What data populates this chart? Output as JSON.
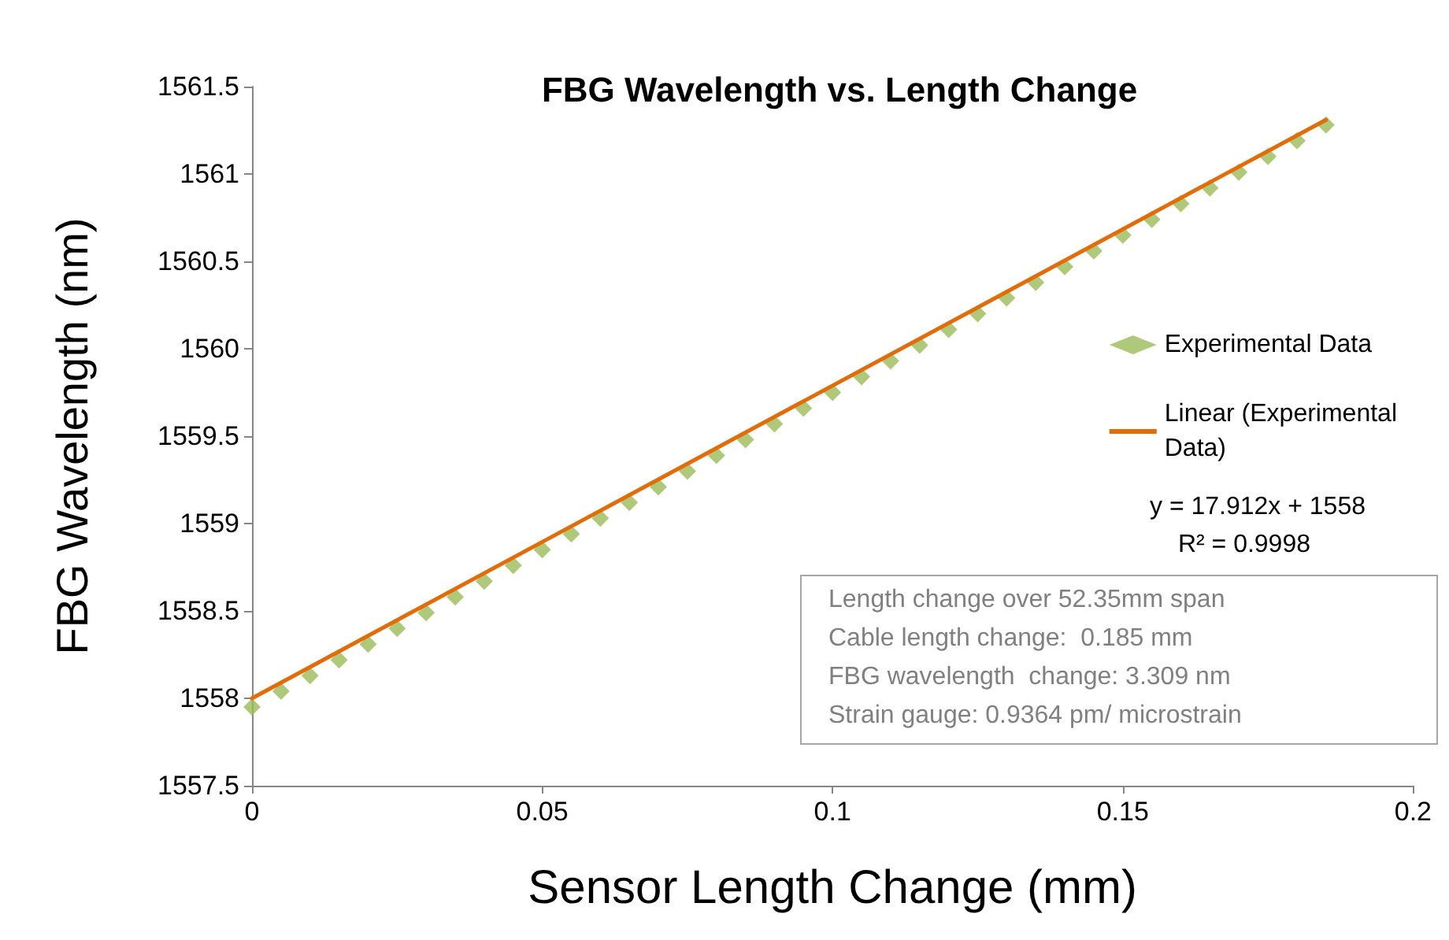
{
  "chart_data": {
    "type": "scatter",
    "title": "FBG Wavelength vs. Length Change",
    "xlabel": "Sensor Length Change (mm)",
    "ylabel": "FBG Wavelength (nm)",
    "xlim": [
      0,
      0.2
    ],
    "xticks": [
      0,
      0.05,
      0.1,
      0.15,
      0.2
    ],
    "ylim": [
      1557.5,
      1561.5
    ],
    "yticks": [
      1557.5,
      1558,
      1558.5,
      1559,
      1559.5,
      1560,
      1560.5,
      1561,
      1561.5
    ],
    "grid": false,
    "legend": "right",
    "series": [
      {
        "name": "Experimental Data",
        "marker": "diamond",
        "color": "#9bbb59",
        "x": [
          0,
          0.005,
          0.01,
          0.015,
          0.02,
          0.025,
          0.03,
          0.035,
          0.04,
          0.045,
          0.05,
          0.055,
          0.06,
          0.065,
          0.07,
          0.075,
          0.08,
          0.085,
          0.09,
          0.095,
          0.1,
          0.105,
          0.11,
          0.115,
          0.12,
          0.125,
          0.13,
          0.135,
          0.14,
          0.145,
          0.15,
          0.155,
          0.16,
          0.165,
          0.17,
          0.175,
          0.18,
          0.185
        ],
        "values": [
          1557.95,
          1558.04,
          1558.13,
          1558.22,
          1558.31,
          1558.4,
          1558.49,
          1558.58,
          1558.67,
          1558.76,
          1558.85,
          1558.94,
          1559.03,
          1559.12,
          1559.21,
          1559.3,
          1559.39,
          1559.48,
          1559.57,
          1559.66,
          1559.75,
          1559.84,
          1559.93,
          1560.02,
          1560.11,
          1560.2,
          1560.29,
          1560.38,
          1560.47,
          1560.56,
          1560.65,
          1560.74,
          1560.83,
          1560.92,
          1561.01,
          1561.1,
          1561.19,
          1561.28
        ]
      },
      {
        "name": "Linear (Experimental Data)",
        "type": "line",
        "color": "#e36c09",
        "line_style": "solid",
        "x": [
          0,
          0.185
        ],
        "values": [
          1558,
          1561.31
        ]
      }
    ],
    "annotations": [
      "y = 17.912x + 1558",
      "R² = 0.9998",
      "Length change over 52.35mm span",
      "Cable length change:  0.185 mm",
      "FBG wavelength  change: 3.309 nm",
      "Strain gauge: 0.9364 pm/ microstrain"
    ]
  }
}
